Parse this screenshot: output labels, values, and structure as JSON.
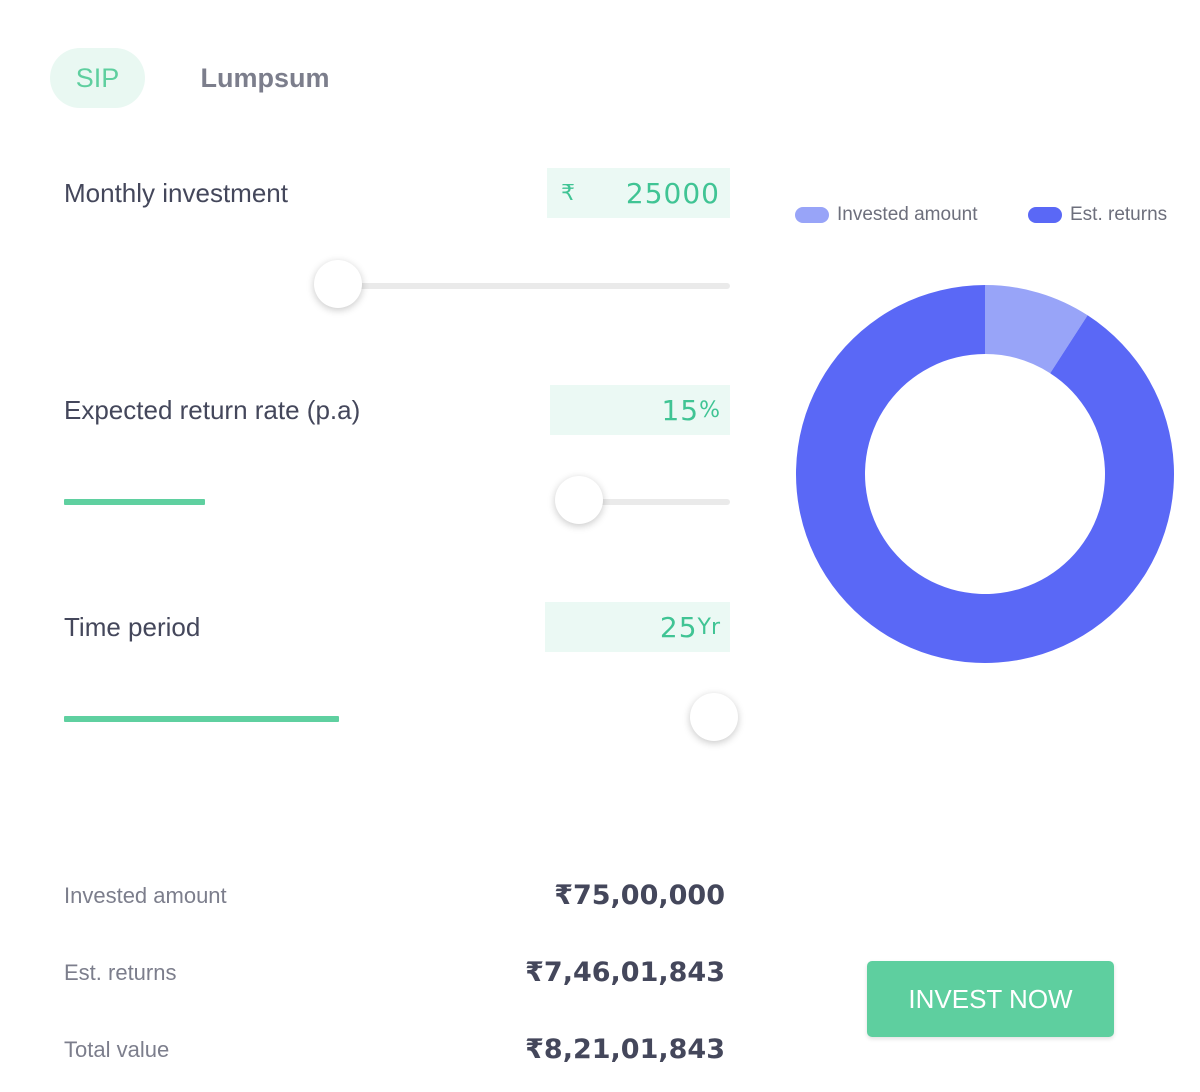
{
  "tabs": {
    "sip": "SIP",
    "lumpsum": "Lumpsum"
  },
  "fields": {
    "monthly_investment": {
      "label": "Monthly investment",
      "currency_symbol": "₹",
      "value": "25000"
    },
    "return_rate": {
      "label": "Expected return rate (p.a)",
      "value": "15",
      "unit": "%"
    },
    "time_period": {
      "label": "Time period",
      "value": "25",
      "unit": "Yr"
    }
  },
  "sliders": {
    "monthly_investment": {
      "level": 0.06
    },
    "return_rate": {
      "level": 0.15
    },
    "time_period": {
      "level": 0.4
    }
  },
  "chart_data": {
    "type": "pie",
    "donut": true,
    "legend_position": "top",
    "slices": [
      {
        "label": "Invested amount",
        "value": 7500000,
        "color": "#98a4f8"
      },
      {
        "label": "Est. returns",
        "value": 74601843,
        "color": "#5a68f6"
      }
    ]
  },
  "summary": {
    "invested_amount": {
      "label": "Invested amount",
      "value": "₹75,00,000"
    },
    "est_returns": {
      "label": "Est. returns",
      "value": "₹7,46,01,843"
    },
    "total_value": {
      "label": "Total value",
      "value": "₹8,21,01,843"
    }
  },
  "cta": {
    "label": "INVEST NOW"
  },
  "colors": {
    "accent": "#5ecf9f",
    "accent_bg": "#ebf9f4",
    "invested": "#98a4f8",
    "returns": "#5a68f6"
  }
}
